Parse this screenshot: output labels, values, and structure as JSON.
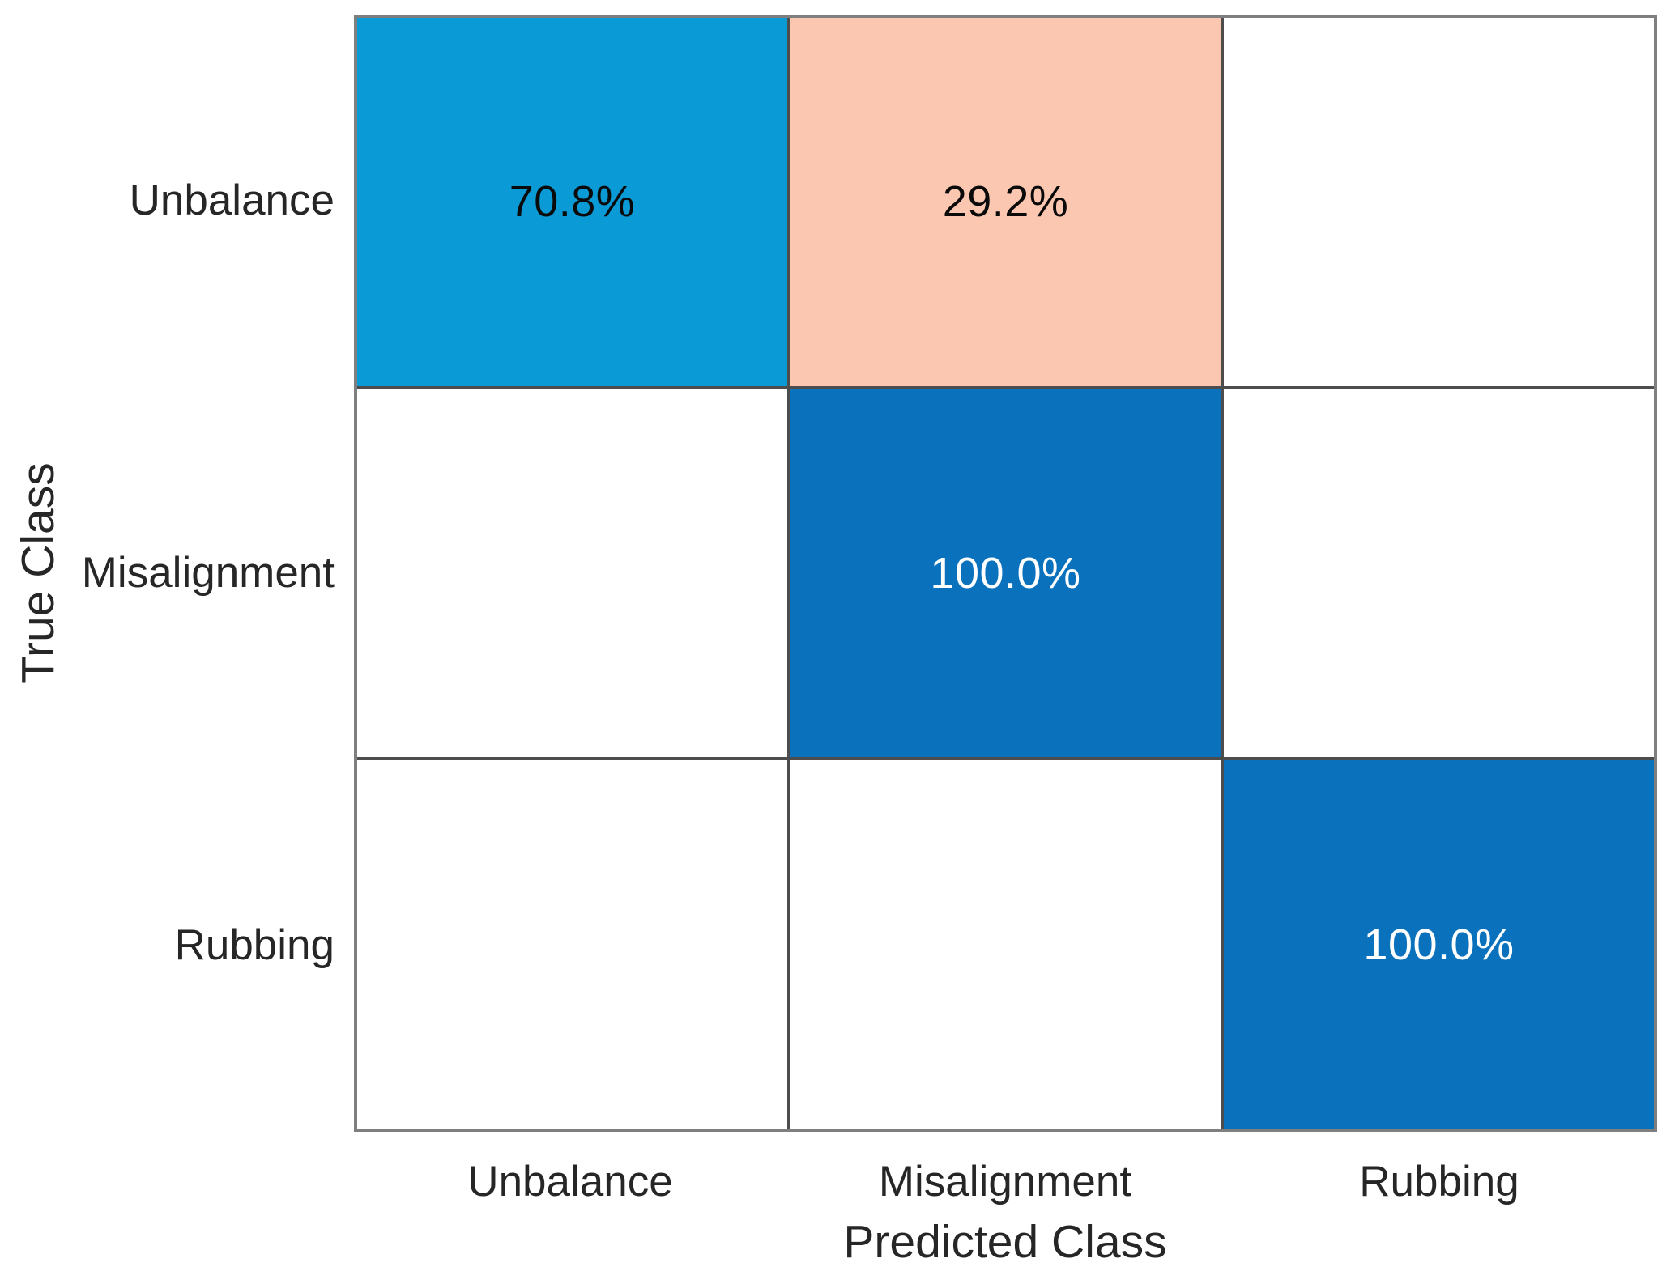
{
  "figure": {
    "background": "#ffffff",
    "grid_line_color": "#4d4d4d",
    "outer_border_color": "#7f7f7f",
    "axis_text_color": "#262626"
  },
  "chart_data": {
    "type": "heatmap",
    "variant": "confusion_matrix",
    "title": "",
    "xlabel": "Predicted Class",
    "ylabel": "True Class",
    "x_categories": [
      "Unbalance",
      "Misalignment",
      "Rubbing"
    ],
    "y_categories": [
      "Unbalance",
      "Misalignment",
      "Rubbing"
    ],
    "normalization": "row-normalized percent",
    "matrix_percent": [
      [
        70.8,
        29.2,
        null
      ],
      [
        null,
        100.0,
        null
      ],
      [
        null,
        null,
        100.0
      ]
    ],
    "legend": "none",
    "grid": "on",
    "cells": [
      {
        "row": "Unbalance",
        "col": "Unbalance",
        "label": "70.8%",
        "value": 70.8,
        "bg": "#0a9ad5",
        "text": "#0a0a0a"
      },
      {
        "row": "Unbalance",
        "col": "Misalignment",
        "label": "29.2%",
        "value": 29.2,
        "bg": "#fcc7b0",
        "text": "#0a0a0a"
      },
      {
        "row": "Unbalance",
        "col": "Rubbing",
        "label": "",
        "value": null,
        "bg": "#ffffff",
        "text": "#0a0a0a"
      },
      {
        "row": "Misalignment",
        "col": "Unbalance",
        "label": "",
        "value": null,
        "bg": "#ffffff",
        "text": "#0a0a0a"
      },
      {
        "row": "Misalignment",
        "col": "Misalignment",
        "label": "100.0%",
        "value": 100.0,
        "bg": "#0a72bd",
        "text": "#ffffff"
      },
      {
        "row": "Misalignment",
        "col": "Rubbing",
        "label": "",
        "value": null,
        "bg": "#ffffff",
        "text": "#0a0a0a"
      },
      {
        "row": "Rubbing",
        "col": "Unbalance",
        "label": "",
        "value": null,
        "bg": "#ffffff",
        "text": "#0a0a0a"
      },
      {
        "row": "Rubbing",
        "col": "Misalignment",
        "label": "",
        "value": null,
        "bg": "#ffffff",
        "text": "#0a0a0a"
      },
      {
        "row": "Rubbing",
        "col": "Rubbing",
        "label": "100.0%",
        "value": 100.0,
        "bg": "#0a72bd",
        "text": "#ffffff"
      }
    ]
  }
}
